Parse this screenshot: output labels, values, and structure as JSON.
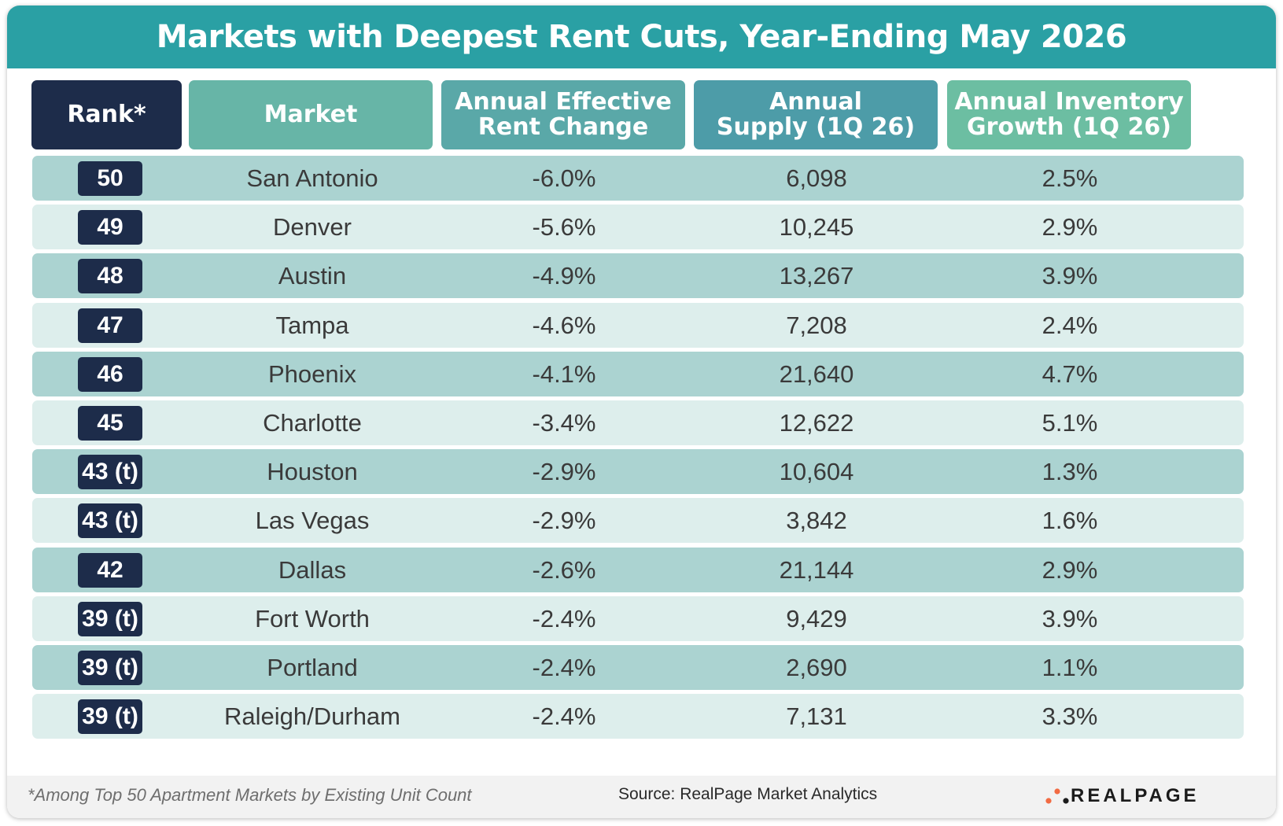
{
  "chart_data": {
    "type": "table",
    "title": "Markets with Deepest Rent Cuts, Year-Ending May 2026",
    "columns": [
      "Rank*",
      "Market",
      "Annual Effective\nRent Change",
      "Annual\nSupply (1Q 26)",
      "Annual Inventory\nGrowth (1Q 26)"
    ],
    "rows": [
      {
        "rank": "50",
        "market": "San Antonio",
        "rent_change": "-6.0%",
        "supply": "6,098",
        "inventory_growth": "2.5%"
      },
      {
        "rank": "49",
        "market": "Denver",
        "rent_change": "-5.6%",
        "supply": "10,245",
        "inventory_growth": "2.9%"
      },
      {
        "rank": "48",
        "market": "Austin",
        "rent_change": "-4.9%",
        "supply": "13,267",
        "inventory_growth": "3.9%"
      },
      {
        "rank": "47",
        "market": "Tampa",
        "rent_change": "-4.6%",
        "supply": "7,208",
        "inventory_growth": "2.4%"
      },
      {
        "rank": "46",
        "market": "Phoenix",
        "rent_change": "-4.1%",
        "supply": "21,640",
        "inventory_growth": "4.7%"
      },
      {
        "rank": "45",
        "market": "Charlotte",
        "rent_change": "-3.4%",
        "supply": "12,622",
        "inventory_growth": "5.1%"
      },
      {
        "rank": "43 (t)",
        "market": "Houston",
        "rent_change": "-2.9%",
        "supply": "10,604",
        "inventory_growth": "1.3%"
      },
      {
        "rank": "43 (t)",
        "market": "Las Vegas",
        "rent_change": "-2.9%",
        "supply": "3,842",
        "inventory_growth": "1.6%"
      },
      {
        "rank": "42",
        "market": "Dallas",
        "rent_change": "-2.6%",
        "supply": "21,144",
        "inventory_growth": "2.9%"
      },
      {
        "rank": "39 (t)",
        "market": "Fort Worth",
        "rent_change": "-2.4%",
        "supply": "9,429",
        "inventory_growth": "3.9%"
      },
      {
        "rank": "39 (t)",
        "market": "Portland",
        "rent_change": "-2.4%",
        "supply": "2,690",
        "inventory_growth": "1.1%"
      },
      {
        "rank": "39 (t)",
        "market": "Raleigh/Durham",
        "rent_change": "-2.4%",
        "supply": "7,131",
        "inventory_growth": "3.3%"
      }
    ],
    "footnote": "*Among Top 50 Apartment Markets by Existing Unit Count",
    "source": "Source: RealPage Market Analytics"
  },
  "logo": {
    "text": "REALPAGE",
    "icon": "realpage-dots-icon"
  },
  "colors": {
    "title_bar": "#2aa0a4",
    "rank_header": "#1d2c4a",
    "market_header": "#67b5a7",
    "rent_header": "#5aa8a8",
    "supply_header": "#4d9ca8",
    "growth_header": "#6cbea2",
    "row_dark": "#abd3d1",
    "row_light": "#ddeeec",
    "rank_badge": "#1d2c4a",
    "logo_dot": "#f26b43"
  }
}
